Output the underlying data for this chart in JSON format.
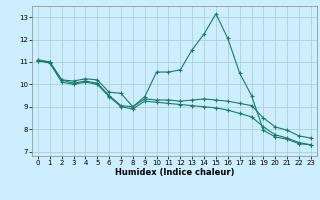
{
  "title": "",
  "xlabel": "Humidex (Indice chaleur)",
  "bg_color": "#cceeff",
  "grid_color": "#aacccc",
  "line_color": "#1a7a6a",
  "xlim": [
    -0.5,
    23.5
  ],
  "ylim": [
    6.8,
    13.5
  ],
  "yticks": [
    7,
    8,
    9,
    10,
    11,
    12,
    13
  ],
  "xticks": [
    0,
    1,
    2,
    3,
    4,
    5,
    6,
    7,
    8,
    9,
    10,
    11,
    12,
    13,
    14,
    15,
    16,
    17,
    18,
    19,
    20,
    21,
    22,
    23
  ],
  "series": [
    [
      11.1,
      11.0,
      10.2,
      10.15,
      10.25,
      10.2,
      9.65,
      9.6,
      9.0,
      9.45,
      10.55,
      10.55,
      10.65,
      11.55,
      12.25,
      13.15,
      12.05,
      10.5,
      9.5,
      7.95,
      7.65,
      7.55,
      7.35,
      7.3
    ],
    [
      11.05,
      11.0,
      10.2,
      10.05,
      10.15,
      10.05,
      9.5,
      9.05,
      9.0,
      9.35,
      9.3,
      9.3,
      9.25,
      9.3,
      9.35,
      9.3,
      9.25,
      9.15,
      9.05,
      8.5,
      8.1,
      7.95,
      7.7,
      7.6
    ],
    [
      11.05,
      10.95,
      10.1,
      10.0,
      10.1,
      10.0,
      9.45,
      9.0,
      8.9,
      9.25,
      9.2,
      9.15,
      9.1,
      9.05,
      9.0,
      8.95,
      8.85,
      8.7,
      8.55,
      8.1,
      7.75,
      7.6,
      7.4,
      7.3
    ]
  ]
}
